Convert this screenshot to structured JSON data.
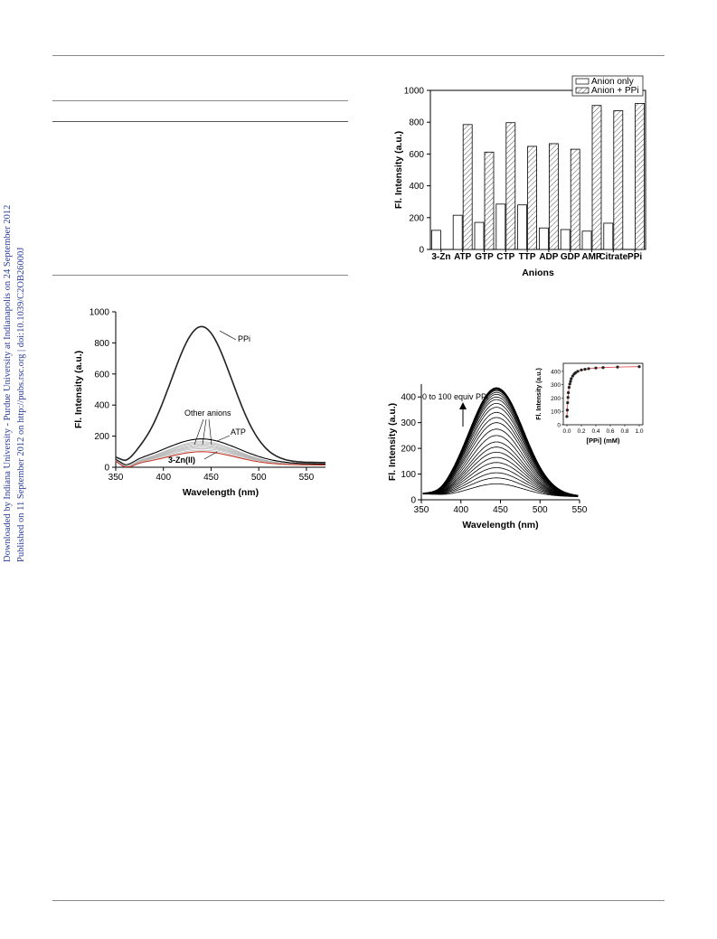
{
  "sidebar": {
    "downloaded": "Downloaded by Indiana University - Purdue University at Indianapolis on 24 September 2012",
    "published": "Published on 11 September 2012 on http://pubs.rsc.org | doi:10.1039/C2OB26000J"
  },
  "colors": {
    "link": "#2b3f9a",
    "ink": "#000000",
    "rule": "#8a8a8a",
    "red_curve": "#c0392b",
    "hatch": "#555555"
  },
  "chart_data": [
    {
      "id": "bar_chart",
      "type": "bar",
      "categories": [
        "3-Zn",
        "ATP",
        "GTP",
        "CTP",
        "TTP",
        "ADP",
        "GDP",
        "AMP",
        "Citrate",
        "PPi"
      ],
      "series": [
        {
          "name": "Anion only",
          "values": [
            120,
            215,
            170,
            285,
            280,
            135,
            125,
            115,
            165,
            null
          ]
        },
        {
          "name": "Anion + PPi",
          "values": [
            null,
            785,
            612,
            797,
            648,
            665,
            630,
            905,
            872,
            918
          ]
        }
      ],
      "xlabel": "Anions",
      "ylabel": "Fl. Intensity (a.u.)",
      "ylim": [
        0,
        1000
      ],
      "yticks": [
        0,
        200,
        400,
        600,
        800,
        1000
      ],
      "legend": "top-right"
    },
    {
      "id": "spectra_anions",
      "type": "line",
      "xlabel": "Wavelength (nm)",
      "ylabel": "Fl. Intensity (a.u.)",
      "xlim": [
        350,
        570
      ],
      "ylim": [
        0,
        1000
      ],
      "xticks": [
        350,
        400,
        450,
        500,
        550
      ],
      "yticks": [
        0,
        200,
        400,
        600,
        800,
        1000
      ],
      "annotations": [
        "PPi",
        "Other anions",
        "ATP",
        "3-Zn(II)"
      ],
      "series": [
        {
          "label": "PPi",
          "peak_x": 440,
          "peak_y": 905
        },
        {
          "label": "ATP",
          "peak_x": 440,
          "peak_y": 182
        },
        {
          "label": "Other anions",
          "peak_x": 440,
          "peak_y": 150
        },
        {
          "label": "3-Zn(II)",
          "peak_x": 440,
          "peak_y": 100
        }
      ]
    },
    {
      "id": "titration_spectra",
      "type": "line",
      "xlabel": "Wavelength (nm)",
      "ylabel": "Fl. Intensity (a.u.)",
      "xlim": [
        350,
        550
      ],
      "ylim": [
        0,
        450
      ],
      "xticks": [
        350,
        400,
        450,
        500,
        550
      ],
      "yticks": [
        0,
        100,
        200,
        300,
        400
      ],
      "annotation": "0 to 100 equiv PPi",
      "peak_x": 445,
      "peak_values": [
        62,
        85,
        105,
        125,
        145,
        165,
        185,
        205,
        225,
        250,
        275,
        300,
        320,
        340,
        360,
        375,
        390,
        400,
        410,
        418,
        425,
        430,
        433,
        435
      ]
    },
    {
      "id": "titration_inset",
      "type": "scatter",
      "xlabel": "[PPi] (mM)",
      "ylabel": "Fl. Intensity (a.u.)",
      "xlim": [
        -0.05,
        1.05
      ],
      "ylim": [
        0,
        460
      ],
      "xticks": [
        0.0,
        0.2,
        0.4,
        0.6,
        0.8,
        1.0
      ],
      "yticks": [
        0,
        100,
        200,
        300,
        400
      ],
      "x": [
        0.0,
        0.005,
        0.01,
        0.015,
        0.02,
        0.03,
        0.04,
        0.05,
        0.06,
        0.08,
        0.1,
        0.12,
        0.15,
        0.2,
        0.25,
        0.3,
        0.4,
        0.5,
        0.7,
        1.0
      ],
      "y": [
        62,
        110,
        165,
        205,
        240,
        280,
        305,
        325,
        345,
        365,
        380,
        390,
        400,
        410,
        415,
        420,
        425,
        428,
        432,
        435
      ]
    }
  ]
}
